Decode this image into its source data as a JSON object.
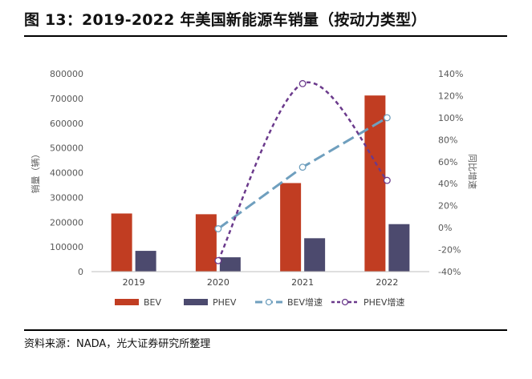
{
  "title": "图 13：2019-2022 年美国新能源车销量（按动力类型）",
  "source": "资料来源：NADA，光大证券研究所整理",
  "chart_data": {
    "type": "bar+line",
    "categories": [
      "2019",
      "2020",
      "2021",
      "2022"
    ],
    "series": [
      {
        "name": "BEV",
        "kind": "bar",
        "axis": "left",
        "color": "#c13d22",
        "values": [
          235000,
          232000,
          358000,
          712000
        ]
      },
      {
        "name": "PHEV",
        "kind": "bar",
        "axis": "left",
        "color": "#4c4a6e",
        "values": [
          84000,
          58000,
          135000,
          192000
        ]
      },
      {
        "name": "BEV增速",
        "kind": "line",
        "axis": "right",
        "color": "#6f9fbe",
        "values": [
          null,
          -1,
          55,
          100
        ]
      },
      {
        "name": "PHEV增速",
        "kind": "line",
        "axis": "right",
        "color": "#6b3a8c",
        "values": [
          null,
          -30,
          131,
          43
        ]
      }
    ],
    "ylabel": "销量（辆）",
    "ylabel_right": "同比增速",
    "ylim": [
      0,
      800000
    ],
    "ylim_right": [
      -40,
      140
    ],
    "y_ticks": [
      0,
      100000,
      200000,
      300000,
      400000,
      500000,
      600000,
      700000,
      800000
    ],
    "y_ticks_right": [
      -40,
      -20,
      0,
      20,
      40,
      60,
      80,
      100,
      120,
      140
    ],
    "y_right_format": "percent",
    "legend": [
      "BEV",
      "PHEV",
      "BEV增速",
      "PHEV增速"
    ],
    "legend_position": "bottom",
    "grid": false
  }
}
